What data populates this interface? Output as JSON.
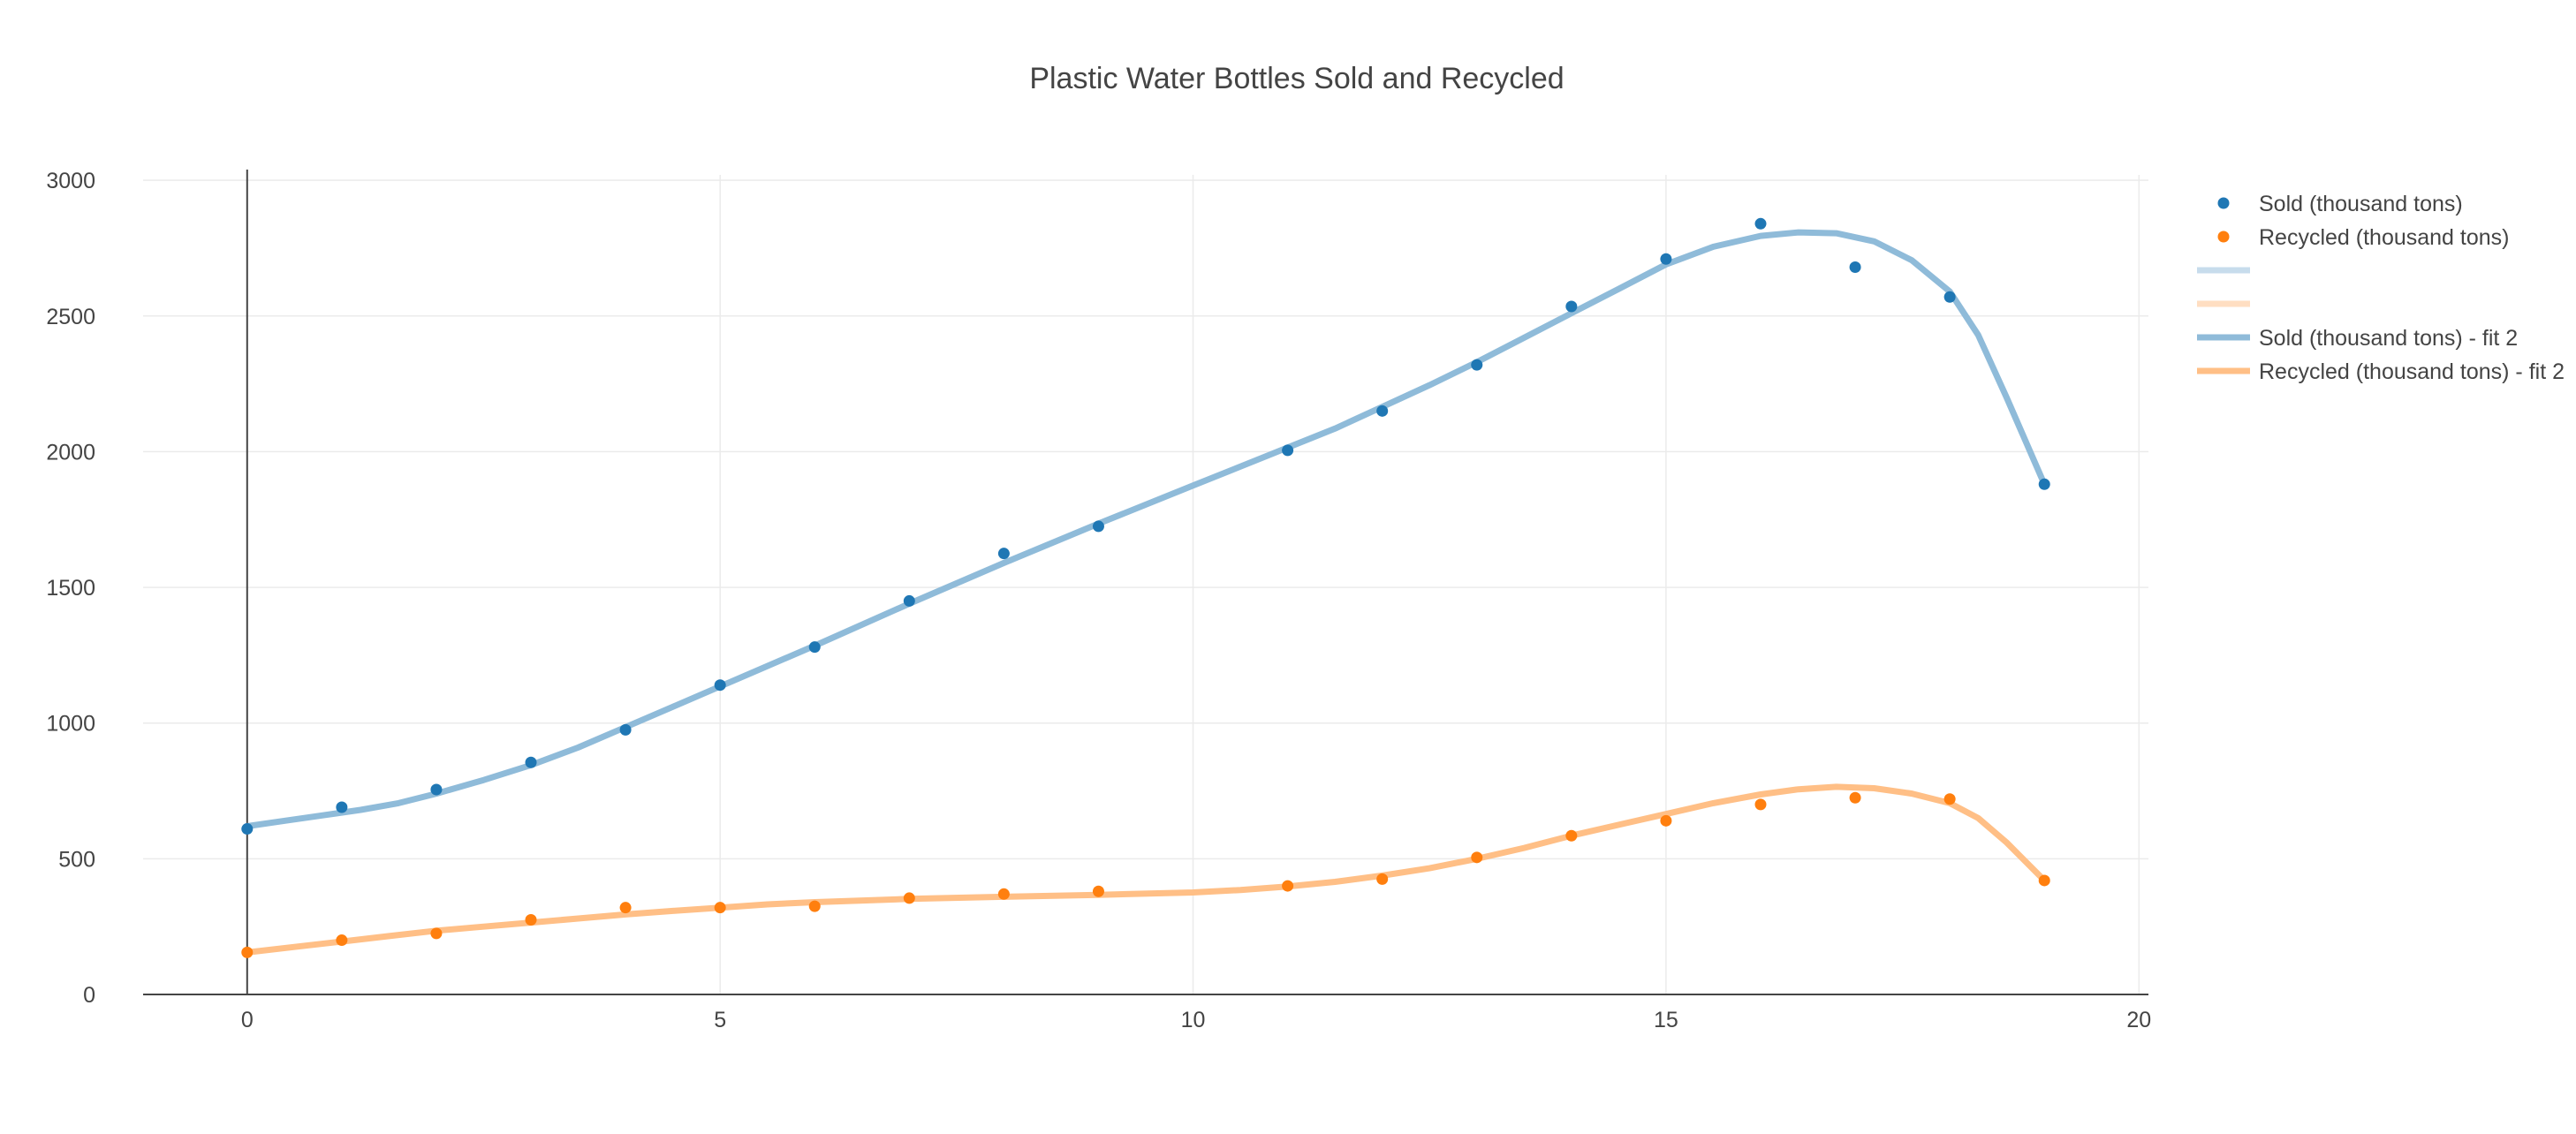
{
  "chart_data": {
    "type": "scatter",
    "title": "Plastic Water Bottles Sold and Recycled",
    "xlabel": "",
    "ylabel": "",
    "xlim": [
      -1.1,
      20.1
    ],
    "ylim": [
      0,
      3020
    ],
    "x_ticks": [
      0,
      5,
      10,
      15,
      20
    ],
    "y_ticks": [
      0,
      500,
      1000,
      1500,
      2000,
      2500,
      3000
    ],
    "grid": true,
    "legend_position": "right",
    "colors": {
      "sold_marker": "#1f77b4",
      "recycled_marker": "#ff7f0e",
      "sold_fit": "#8fbbd9",
      "recycled_fit": "#ffbf86",
      "sold_fit_faint": "#c7dcec",
      "recycled_fit_faint": "#ffdec2"
    },
    "series": [
      {
        "name": "Sold (thousand tons)",
        "kind": "markers",
        "color": "#1f77b4",
        "x": [
          0,
          1,
          2,
          3,
          4,
          5,
          6,
          7,
          8,
          9,
          11,
          12,
          13,
          14,
          15,
          16,
          17,
          18,
          19
        ],
        "y": [
          610,
          690,
          755,
          855,
          975,
          1140,
          1280,
          1450,
          1625,
          1725,
          2005,
          2150,
          2320,
          2535,
          2710,
          2840,
          2680,
          2570,
          1880
        ]
      },
      {
        "name": "Recycled (thousand tons)",
        "kind": "markers",
        "color": "#ff7f0e",
        "x": [
          0,
          1,
          2,
          3,
          4,
          5,
          6,
          7,
          8,
          9,
          11,
          12,
          13,
          14,
          15,
          16,
          17,
          18,
          19
        ],
        "y": [
          155,
          200,
          225,
          275,
          320,
          320,
          325,
          355,
          370,
          380,
          400,
          425,
          505,
          585,
          640,
          700,
          725,
          720,
          420
        ]
      },
      {
        "name": "",
        "kind": "legend-line",
        "color": "#c7dcec"
      },
      {
        "name": "",
        "kind": "legend-line",
        "color": "#ffdec2"
      },
      {
        "name": "Sold (thousand tons) - fit 2",
        "kind": "line",
        "color": "#8fbbd9",
        "x": [
          0,
          0.4,
          0.8,
          1.2,
          1.6,
          2,
          2.5,
          3,
          3.5,
          4,
          4.5,
          5,
          6,
          7,
          8,
          9,
          10,
          11,
          11.5,
          12,
          12.5,
          13,
          13.5,
          14,
          14.5,
          15,
          15.5,
          16,
          16.4,
          16.8,
          17.2,
          17.6,
          18,
          18.3,
          18.6,
          19
        ],
        "y": [
          620,
          640,
          660,
          680,
          705,
          740,
          790,
          845,
          910,
          985,
          1060,
          1135,
          1285,
          1440,
          1590,
          1735,
          1875,
          2015,
          2085,
          2165,
          2245,
          2330,
          2420,
          2510,
          2600,
          2690,
          2755,
          2795,
          2808,
          2805,
          2775,
          2705,
          2590,
          2430,
          2200,
          1880
        ]
      },
      {
        "name": "Recycled (thousand tons) - fit 2",
        "kind": "line",
        "color": "#ffbf86",
        "x": [
          0,
          0.5,
          1,
          1.5,
          2,
          2.5,
          3,
          3.5,
          4,
          4.5,
          5,
          5.5,
          6,
          7,
          8,
          9,
          10,
          10.5,
          11,
          11.5,
          12,
          12.5,
          13,
          13.5,
          14,
          14.5,
          15,
          15.5,
          16,
          16.4,
          16.8,
          17.2,
          17.6,
          18,
          18.3,
          18.6,
          19
        ],
        "y": [
          155,
          175,
          195,
          215,
          235,
          250,
          265,
          280,
          295,
          308,
          320,
          332,
          340,
          352,
          360,
          367,
          376,
          385,
          398,
          415,
          438,
          465,
          500,
          540,
          585,
          625,
          665,
          705,
          737,
          756,
          765,
          760,
          740,
          705,
          650,
          560,
          420
        ]
      }
    ]
  }
}
